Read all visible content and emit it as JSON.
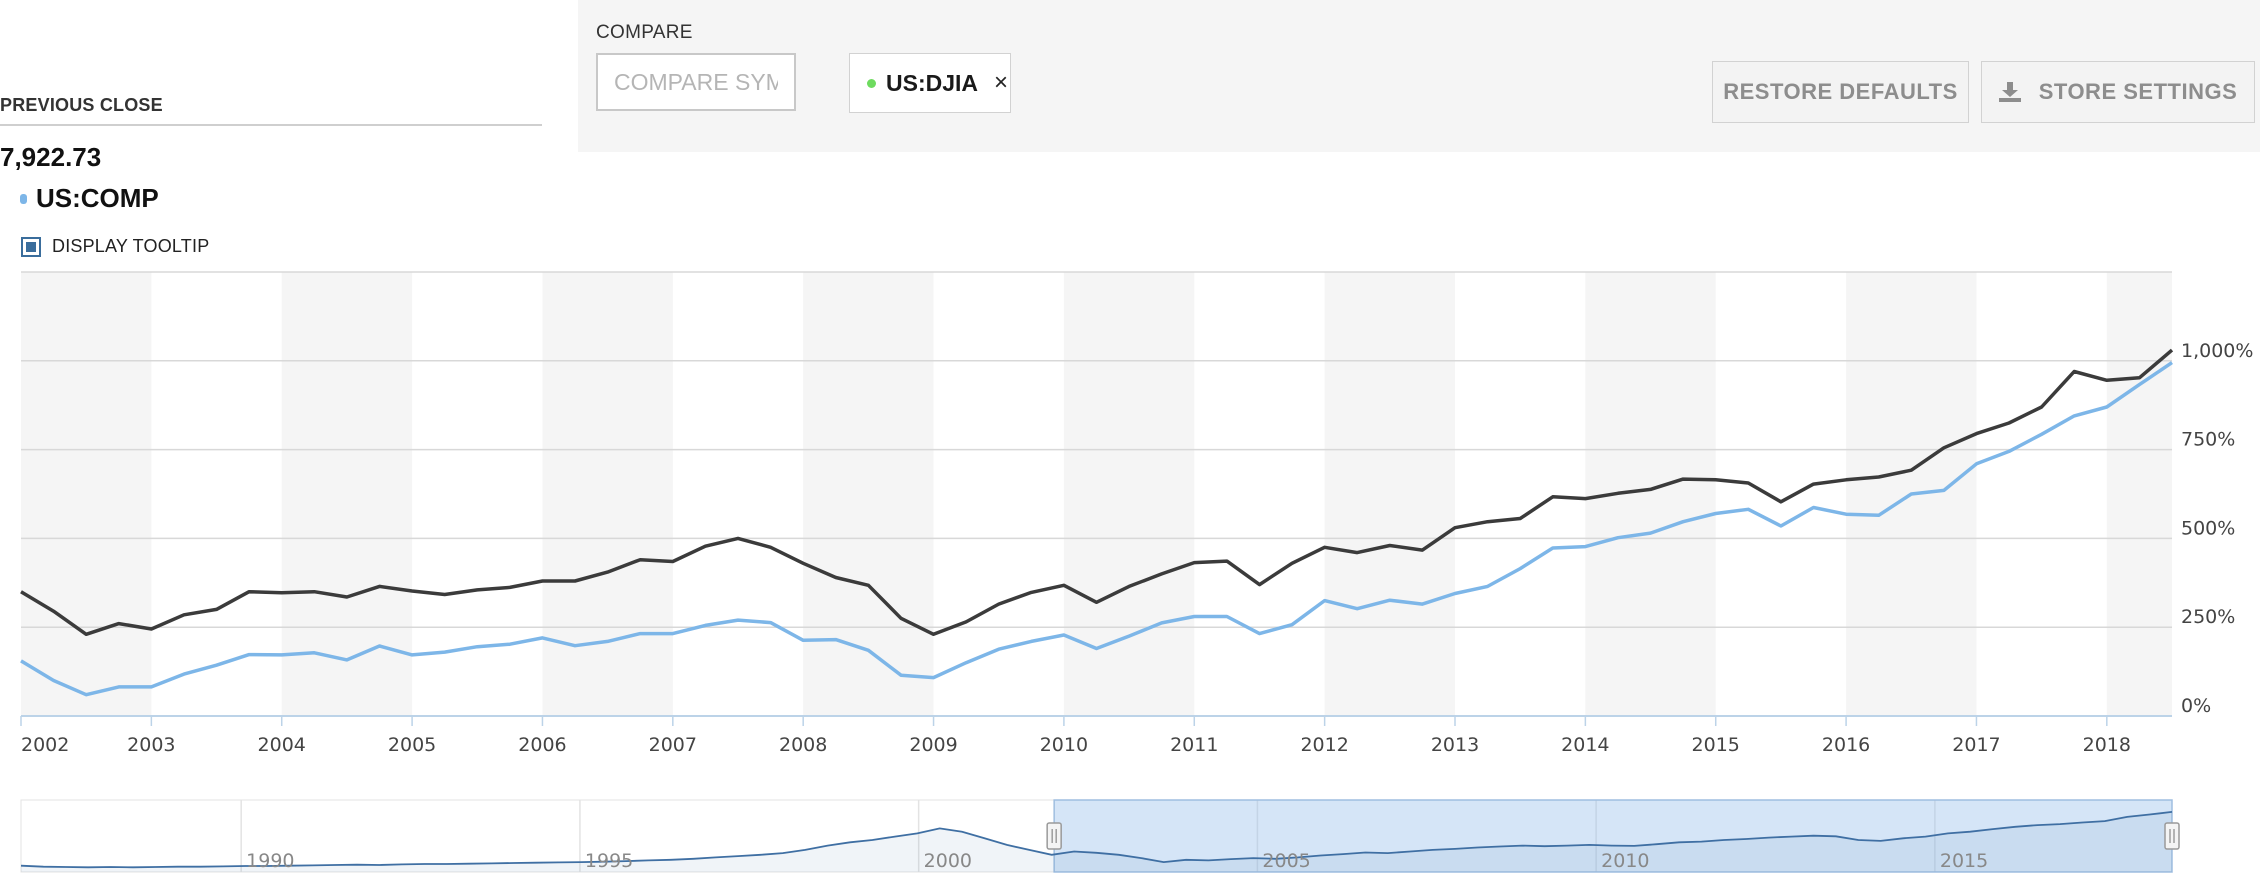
{
  "compare": {
    "label": "COMPARE",
    "placeholder": "COMPARE SYMBOL",
    "chips": [
      {
        "symbol": "US:DJIA",
        "dot_color": "#6edb5f",
        "remove": "×"
      }
    ]
  },
  "buttons": {
    "restore": "RESTORE DEFAULTS",
    "store": "STORE SETTINGS"
  },
  "previous_close": {
    "label": "PREVIOUS CLOSE",
    "value": "7,922.73"
  },
  "symbol": {
    "name": "US:COMP",
    "color": "#7db6e8"
  },
  "tooltip_toggle": {
    "label": "DISPLAY TOOLTIP",
    "checked": true
  },
  "icons": {
    "download": "download-icon",
    "close": "close-icon"
  },
  "chart_data": {
    "type": "line",
    "x_start": 2002.0,
    "x_end": 2018.5,
    "x_step": 0.25,
    "xlim": [
      2002,
      2018.5
    ],
    "x_ticks": [
      "2002",
      "2003",
      "2004",
      "2005",
      "2006",
      "2007",
      "2008",
      "2009",
      "2010",
      "2011",
      "2012",
      "2013",
      "2014",
      "2015",
      "2016",
      "2017",
      "2018"
    ],
    "y_ticks": [
      "0%",
      "250%",
      "500%",
      "750%",
      "1,000%"
    ],
    "ylim": [
      0,
      1250
    ],
    "grid": true,
    "series": [
      {
        "color": "#3b3b3b",
        "values": [
          350,
          295,
          230,
          260,
          245,
          285,
          300,
          350,
          347,
          350,
          335,
          365,
          352,
          342,
          355,
          362,
          380,
          380,
          405,
          440,
          435,
          478,
          500,
          475,
          430,
          390,
          368,
          275,
          230,
          265,
          315,
          348,
          368,
          320,
          365,
          400,
          432,
          436,
          370,
          430,
          475,
          460,
          480,
          467,
          530,
          547,
          556,
          617,
          612,
          627,
          638,
          667,
          665,
          656,
          603,
          653,
          665,
          673,
          692,
          755,
          795,
          825,
          870,
          970,
          945,
          952,
          1030
        ]
      },
      {
        "name": "US:COMP",
        "color": "#7db6e8",
        "values": [
          155,
          100,
          60,
          82,
          82,
          118,
          143,
          173,
          172,
          178,
          158,
          197,
          172,
          180,
          195,
          202,
          220,
          198,
          210,
          232,
          232,
          255,
          270,
          263,
          213,
          215,
          185,
          115,
          108,
          150,
          188,
          210,
          228,
          190,
          225,
          262,
          280,
          280,
          232,
          257,
          325,
          302,
          326,
          315,
          345,
          365,
          415,
          473,
          477,
          502,
          515,
          547,
          570,
          582,
          535,
          587,
          568,
          565,
          625,
          635,
          710,
          745,
          793,
          845,
          870,
          933,
          995
        ]
      }
    ],
    "navigator": {
      "x_ticks": [
        "1990",
        "1995",
        "2000",
        "2005",
        "2010",
        "2015"
      ],
      "xlim": [
        1986.75,
        2018.5
      ],
      "selected_range": [
        2002,
        2018.5
      ],
      "values": [
        7,
        4,
        3,
        2,
        3,
        2,
        3,
        4,
        4,
        5,
        6,
        6,
        7,
        8,
        9,
        10,
        9,
        11,
        12,
        12,
        13,
        14,
        15,
        16,
        17,
        18,
        19,
        21,
        23,
        25,
        28,
        32,
        36,
        40,
        45,
        55,
        68,
        78,
        85,
        95,
        105,
        120,
        110,
        90,
        70,
        55,
        40,
        50,
        46,
        40,
        30,
        18,
        25,
        23,
        27,
        30,
        28,
        32,
        38,
        42,
        47,
        45,
        50,
        55,
        58,
        62,
        65,
        68,
        66,
        68,
        70,
        68,
        67,
        72,
        78,
        80,
        85,
        88,
        92,
        95,
        98,
        96,
        85,
        82,
        90,
        95,
        105,
        110,
        118,
        125,
        130,
        133,
        138,
        142,
        155,
        162,
        170
      ]
    }
  }
}
